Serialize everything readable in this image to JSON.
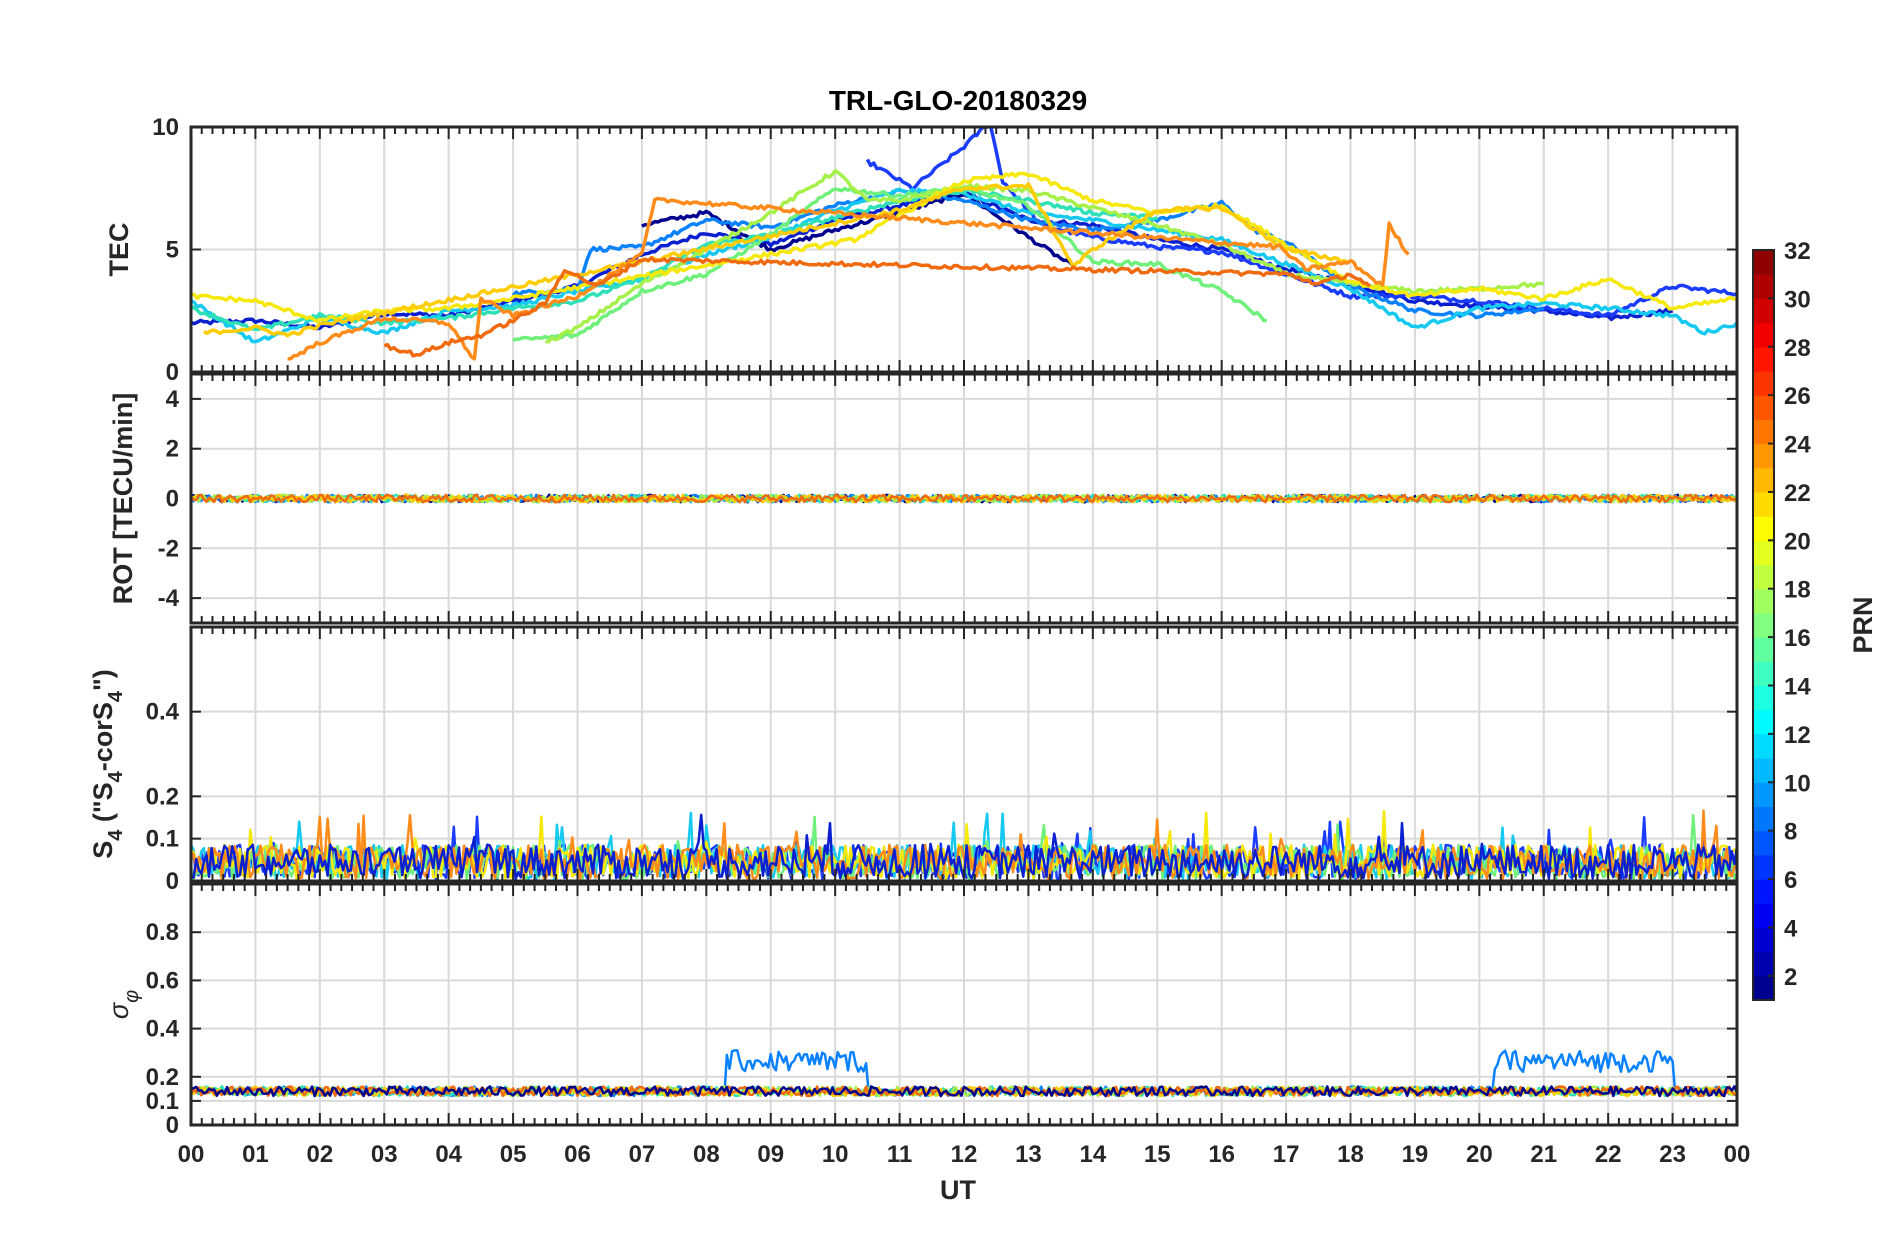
{
  "chart_data": {
    "type": "line",
    "title": "TRL-GLO-20180329",
    "xlabel": "UT",
    "x_ticks": [
      "00",
      "01",
      "02",
      "03",
      "04",
      "05",
      "06",
      "07",
      "08",
      "09",
      "10",
      "11",
      "12",
      "13",
      "14",
      "15",
      "16",
      "17",
      "18",
      "19",
      "20",
      "21",
      "22",
      "23",
      "00"
    ],
    "x_range_hours": [
      0,
      24
    ],
    "panels": [
      {
        "id": "tec",
        "ylabel": "TEC",
        "ylim": [
          0,
          10
        ],
        "yticks": [
          0,
          5,
          10
        ],
        "ytick_labels": [
          "0",
          "5",
          "10"
        ],
        "series": [
          {
            "prn": 3,
            "color": "#0a1fd0",
            "points": [
              [
                0.0,
                2.0
              ],
              [
                1.0,
                2.1
              ],
              [
                2.0,
                1.8
              ],
              [
                3.0,
                2.4
              ],
              [
                4.0,
                2.3
              ],
              [
                5.0,
                2.9
              ],
              [
                6.0,
                3.5
              ],
              [
                7.0,
                4.8
              ],
              [
                8.0,
                5.7
              ],
              [
                9.0,
                5.2
              ],
              [
                10.0,
                6.2
              ],
              [
                11.0,
                6.8
              ],
              [
                12.0,
                7.3
              ],
              [
                13.0,
                6.2
              ],
              [
                14.0,
                6.0
              ],
              [
                15.0,
                5.4
              ],
              [
                16.0,
                5.0
              ],
              [
                17.0,
                4.2
              ],
              [
                18.0,
                3.6
              ],
              [
                19.0,
                2.9
              ],
              [
                20.0,
                2.7
              ],
              [
                21.0,
                2.5
              ],
              [
                22.0,
                2.2
              ],
              [
                23.0,
                2.5
              ]
            ]
          },
          {
            "prn": 2,
            "color": "#00008f",
            "points": [
              [
                7.0,
                6.0
              ],
              [
                8.0,
                6.5
              ],
              [
                9.0,
                5.0
              ],
              [
                10.0,
                5.8
              ],
              [
                11.0,
                6.5
              ],
              [
                12.0,
                7.3
              ],
              [
                13.0,
                5.5
              ],
              [
                13.7,
                4.3
              ]
            ]
          },
          {
            "prn": 4,
            "color": "#1a3cff",
            "points": [
              [
                10.5,
                8.6
              ],
              [
                11.2,
                7.5
              ],
              [
                12.0,
                9.2
              ],
              [
                12.4,
                10.2
              ],
              [
                12.6,
                7.8
              ],
              [
                13.2,
                6.0
              ],
              [
                14.0,
                5.5
              ],
              [
                15.0,
                5.1
              ],
              [
                16.0,
                4.9
              ],
              [
                17.0,
                4.0
              ],
              [
                18.0,
                3.1
              ],
              [
                19.0,
                3.1
              ],
              [
                20.0,
                2.9
              ],
              [
                21.0,
                2.6
              ],
              [
                22.0,
                2.3
              ],
              [
                23.0,
                3.5
              ],
              [
                24.0,
                3.2
              ]
            ]
          },
          {
            "prn": 9,
            "color": "#0a82ff",
            "points": [
              [
                5.0,
                3.2
              ],
              [
                6.0,
                3.4
              ],
              [
                6.2,
                5.0
              ],
              [
                7.0,
                5.1
              ],
              [
                8.0,
                6.2
              ],
              [
                9.0,
                5.9
              ],
              [
                10.0,
                6.8
              ],
              [
                11.0,
                7.4
              ],
              [
                12.0,
                7.0
              ],
              [
                13.0,
                6.2
              ],
              [
                14.0,
                5.8
              ],
              [
                15.0,
                6.2
              ],
              [
                16.0,
                6.9
              ],
              [
                16.5,
                5.8
              ],
              [
                17.0,
                5.3
              ],
              [
                18.0,
                3.5
              ],
              [
                19.0,
                2.5
              ],
              [
                20.0,
                2.3
              ],
              [
                21.0,
                2.6
              ]
            ]
          },
          {
            "prn": 12,
            "color": "#16c9f0",
            "points": [
              [
                0.0,
                2.9
              ],
              [
                1.0,
                1.2
              ],
              [
                2.0,
                2.2
              ],
              [
                3.0,
                1.6
              ],
              [
                4.0,
                2.5
              ],
              [
                5.0,
                2.7
              ],
              [
                6.0,
                3.3
              ],
              [
                7.0,
                3.8
              ],
              [
                8.0,
                4.8
              ],
              [
                9.0,
                5.5
              ],
              [
                10.0,
                6.6
              ],
              [
                11.0,
                7.4
              ],
              [
                12.0,
                7.3
              ],
              [
                13.0,
                6.5
              ],
              [
                14.0,
                6.2
              ],
              [
                15.0,
                5.8
              ],
              [
                16.0,
                5.4
              ],
              [
                17.0,
                4.4
              ],
              [
                18.0,
                3.4
              ],
              [
                19.0,
                1.8
              ],
              [
                20.0,
                2.6
              ],
              [
                21.0,
                2.8
              ],
              [
                22.0,
                2.6
              ],
              [
                23.0,
                2.3
              ],
              [
                23.5,
                1.6
              ],
              [
                24.0,
                2.0
              ]
            ]
          },
          {
            "prn": 14,
            "color": "#2ee0b8",
            "points": [
              [
                0.0,
                2.6
              ],
              [
                1.0,
                1.7
              ],
              [
                2.0,
                2.3
              ],
              [
                3.0,
                2.0
              ],
              [
                4.0,
                2.2
              ],
              [
                5.0,
                2.6
              ],
              [
                6.0,
                2.9
              ],
              [
                7.0,
                3.8
              ],
              [
                8.0,
                5.2
              ],
              [
                9.0,
                5.6
              ],
              [
                10.0,
                6.3
              ],
              [
                11.0,
                7.0
              ],
              [
                12.0,
                7.4
              ],
              [
                13.0,
                7.0
              ],
              [
                14.0,
                6.5
              ],
              [
                15.0,
                6.3
              ]
            ]
          },
          {
            "prn": 16,
            "color": "#6ef07a",
            "points": [
              [
                5.0,
                1.3
              ],
              [
                6.0,
                1.5
              ],
              [
                7.0,
                3.3
              ],
              [
                8.0,
                4.0
              ],
              [
                9.0,
                5.6
              ],
              [
                10.0,
                7.5
              ],
              [
                11.0,
                7.2
              ],
              [
                12.0,
                7.5
              ],
              [
                13.0,
                6.8
              ],
              [
                14.0,
                4.5
              ],
              [
                15.0,
                4.4
              ],
              [
                16.0,
                3.3
              ],
              [
                16.7,
                2.1
              ]
            ]
          },
          {
            "prn": 17,
            "color": "#a6f04a",
            "points": [
              [
                5.5,
                1.2
              ],
              [
                6.0,
                1.8
              ],
              [
                7.0,
                3.6
              ],
              [
                8.0,
                5.0
              ],
              [
                9.0,
                6.5
              ],
              [
                10.0,
                8.2
              ],
              [
                10.5,
                7.0
              ],
              [
                11.0,
                7.0
              ],
              [
                12.0,
                7.6
              ],
              [
                13.0,
                7.4
              ],
              [
                14.0,
                6.7
              ],
              [
                15.0,
                6.0
              ],
              [
                16.0,
                5.2
              ],
              [
                17.0,
                4.0
              ],
              [
                18.0,
                3.6
              ],
              [
                19.0,
                3.3
              ],
              [
                20.0,
                3.4
              ],
              [
                21.0,
                3.6
              ]
            ]
          },
          {
            "prn": 20,
            "color": "#f5e80a",
            "points": [
              [
                0.0,
                3.1
              ],
              [
                1.0,
                2.9
              ],
              [
                2.0,
                2.1
              ],
              [
                3.0,
                2.5
              ],
              [
                4.0,
                2.6
              ],
              [
                5.0,
                3.0
              ],
              [
                10.3,
                5.4
              ],
              [
                11.0,
                6.4
              ],
              [
                12.0,
                7.8
              ],
              [
                13.0,
                8.1
              ],
              [
                14.0,
                7.0
              ],
              [
                15.0,
                6.5
              ],
              [
                16.0,
                6.8
              ],
              [
                17.0,
                5.2
              ],
              [
                18.0,
                3.7
              ],
              [
                19.0,
                3.1
              ],
              [
                20.0,
                3.4
              ],
              [
                21.0,
                3.0
              ],
              [
                22.0,
                3.8
              ],
              [
                23.0,
                2.6
              ],
              [
                24.0,
                3.0
              ]
            ]
          },
          {
            "prn": 21,
            "color": "#ffcc00",
            "points": [
              [
                0.2,
                1.6
              ],
              [
                1.0,
                1.8
              ],
              [
                1.5,
                1.5
              ],
              [
                2.0,
                1.9
              ],
              [
                11.0,
                6.6
              ],
              [
                12.0,
                7.5
              ],
              [
                13.0,
                7.6
              ],
              [
                13.7,
                4.3
              ],
              [
                14.0,
                5.0
              ],
              [
                15.0,
                6.6
              ],
              [
                16.0,
                6.7
              ],
              [
                17.0,
                5.0
              ],
              [
                18.0,
                4.5
              ]
            ]
          },
          {
            "prn": 23,
            "color": "#ff8c1a",
            "points": [
              [
                1.5,
                0.5
              ],
              [
                2.0,
                1.2
              ],
              [
                3.0,
                2.2
              ],
              [
                4.0,
                2.0
              ],
              [
                4.4,
                0.5
              ],
              [
                4.5,
                3.0
              ],
              [
                5.0,
                2.3
              ],
              [
                6.0,
                3.1
              ],
              [
                7.0,
                4.8
              ],
              [
                7.2,
                7.0
              ],
              [
                7.4,
                7.0
              ],
              [
                16.9,
                5.1
              ],
              [
                17.3,
                4.2
              ],
              [
                18.0,
                4.5
              ],
              [
                18.5,
                3.5
              ],
              [
                18.6,
                6.0
              ],
              [
                18.9,
                4.8
              ]
            ]
          },
          {
            "prn": 24,
            "color": "#f06a10",
            "points": [
              [
                3.0,
                1.1
              ],
              [
                3.5,
                0.7
              ],
              [
                4.0,
                1.2
              ],
              [
                4.5,
                1.5
              ],
              [
                5.0,
                2.1
              ],
              [
                5.5,
                2.8
              ],
              [
                5.8,
                4.2
              ],
              [
                6.3,
                3.5
              ],
              [
                7.0,
                4.6
              ],
              [
                17.0,
                4.0
              ],
              [
                17.5,
                3.6
              ],
              [
                18.0,
                4.0
              ],
              [
                18.3,
                3.5
              ]
            ]
          }
        ]
      },
      {
        "id": "rot",
        "ylabel": "ROT [TECU/min]",
        "ylim": [
          -5,
          5
        ],
        "yticks": [
          -4,
          -2,
          0,
          2,
          4
        ],
        "ytick_labels": [
          "-4",
          "-2",
          "0",
          "2",
          "4"
        ],
        "band": {
          "center": 0.0,
          "amplitude": 0.15
        }
      },
      {
        "id": "s4",
        "ylabel": "S4 (\"S4-corS4\")",
        "ylabel_main": "S",
        "ylabel_sub": "4",
        "ylabel_mid": " (\"S",
        "ylabel_mid_sub": "4",
        "ylabel_tail": "-corS",
        "ylabel_tail_sub": "4",
        "ylabel_end": "\")",
        "ylim": [
          0,
          0.6
        ],
        "yticks": [
          0,
          0.1,
          0.2,
          0.4
        ],
        "ytick_labels": [
          "0",
          "0.1",
          "0.2",
          "0.4"
        ],
        "band": {
          "base": 0.03,
          "typical_max": 0.1,
          "peak_max": 0.19
        }
      },
      {
        "id": "sigma",
        "ylabel": "σφ",
        "ylabel_main": "σ",
        "ylabel_sub": "φ",
        "ylim": [
          0,
          1
        ],
        "yticks": [
          0,
          0.1,
          0.2,
          0.4,
          0.6,
          0.8
        ],
        "ytick_labels": [
          "0",
          "0.1",
          "0.2",
          "0.4",
          "0.6",
          "0.8"
        ],
        "band": {
          "base": 0.14,
          "elevated_windows": [
            [
              8.3,
              10.5,
              0.24
            ],
            [
              20.2,
              23.0,
              0.24
            ]
          ]
        }
      }
    ],
    "colorbar": {
      "label": "PRN",
      "range": [
        1,
        32
      ],
      "ticks": [
        2,
        4,
        6,
        8,
        10,
        12,
        14,
        16,
        18,
        20,
        22,
        24,
        26,
        28,
        30,
        32
      ],
      "tick_labels": [
        "2",
        "4",
        "6",
        "8",
        "10",
        "12",
        "14",
        "16",
        "18",
        "20",
        "22",
        "24",
        "26",
        "28",
        "30",
        "32"
      ],
      "colormap": "jet"
    }
  }
}
